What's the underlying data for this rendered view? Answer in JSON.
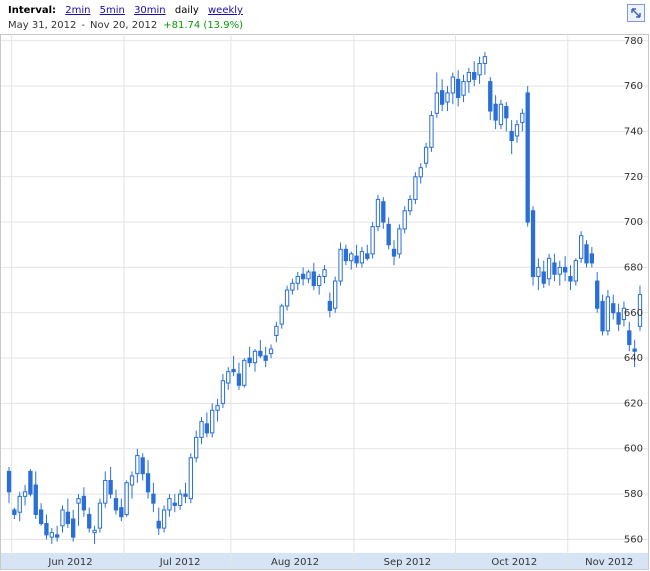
{
  "header": {
    "interval_label": "Interval:",
    "intervals": [
      "2min",
      "5min",
      "30min",
      "daily",
      "weekly"
    ],
    "start_date": "May 31, 2012",
    "separator": "-",
    "end_date": "Nov 20, 2012",
    "change": "+81.74 (13.9%)"
  },
  "chart_data": {
    "type": "candlestick",
    "color": "#2a6fd6",
    "up_fill": "#ffffff",
    "grid": true,
    "xlim": [
      -1.5,
      119.5
    ],
    "xticks": [
      {
        "value": 1,
        "label": "Jun 2012"
      },
      {
        "value": 22,
        "label": "Jul 2012"
      },
      {
        "value": 42,
        "label": "Aug 2012"
      },
      {
        "value": 65,
        "label": "Sep 2012"
      },
      {
        "value": 84,
        "label": "Oct 2012"
      },
      {
        "value": 105,
        "label": "Nov 2012"
      }
    ],
    "ylim": [
      554,
      783
    ],
    "yticks": [
      560,
      580,
      600,
      620,
      640,
      660,
      680,
      700,
      720,
      740,
      760,
      780
    ],
    "open": [
      590,
      573,
      572,
      579,
      590,
      584,
      573,
      567,
      561,
      562,
      566,
      572,
      569,
      576,
      579,
      571,
      563,
      565,
      576,
      586,
      578,
      574,
      571,
      584,
      589,
      596,
      589,
      580,
      568,
      565,
      573,
      576,
      575,
      580,
      578,
      596,
      605,
      611,
      607,
      617,
      620,
      629,
      635,
      633,
      628,
      640,
      638,
      643,
      641,
      642,
      650,
      655,
      663,
      670,
      673,
      677,
      675,
      678,
      672,
      676,
      665,
      662,
      674,
      688,
      683,
      685,
      682,
      686,
      686,
      698,
      709,
      699,
      688,
      686,
      697,
      705,
      710,
      720,
      726,
      733,
      748,
      758,
      753,
      757,
      763,
      756,
      762,
      766,
      765,
      770,
      762,
      752,
      743,
      751,
      740,
      738,
      744,
      757,
      705,
      676,
      678,
      675,
      682,
      677,
      680,
      676,
      674,
      684,
      690,
      686,
      674,
      665,
      652,
      664,
      660,
      657,
      652,
      644,
      654
    ],
    "high": [
      592,
      574,
      581,
      584,
      591,
      590,
      576,
      571,
      565,
      566,
      575,
      578,
      573,
      580,
      583,
      574,
      566,
      578,
      590,
      592,
      582,
      578,
      586,
      590,
      600,
      598,
      595,
      585,
      574,
      575,
      580,
      580,
      582,
      585,
      598,
      608,
      614,
      616,
      620,
      622,
      633,
      636,
      641,
      638,
      640,
      645,
      644,
      648,
      645,
      646,
      656,
      664,
      672,
      675,
      678,
      680,
      679,
      682,
      677,
      681,
      669,
      676,
      691,
      690,
      687,
      690,
      689,
      690,
      700,
      712,
      711,
      702,
      692,
      699,
      707,
      712,
      722,
      726,
      735,
      749,
      766,
      763,
      760,
      766,
      767,
      765,
      768,
      771,
      773,
      775,
      764,
      756,
      754,
      753,
      745,
      745,
      750,
      760,
      707,
      684,
      683,
      686,
      686,
      683,
      685,
      681,
      684,
      696,
      692,
      689,
      678,
      668,
      670,
      668,
      664,
      665,
      656,
      648,
      672
    ],
    "low": [
      576,
      569,
      568,
      575,
      579,
      569,
      566,
      560,
      558,
      559,
      563,
      565,
      559,
      566,
      570,
      563,
      558,
      563,
      574,
      578,
      571,
      568,
      570,
      578,
      585,
      586,
      578,
      572,
      562,
      563,
      570,
      572,
      573,
      576,
      576,
      594,
      602,
      605,
      605,
      612,
      618,
      626,
      632,
      626,
      627,
      636,
      634,
      640,
      636,
      640,
      647,
      653,
      661,
      668,
      670,
      672,
      673,
      670,
      668,
      673,
      658,
      660,
      672,
      681,
      679,
      680,
      680,
      683,
      684,
      696,
      697,
      688,
      681,
      684,
      695,
      703,
      708,
      717,
      724,
      731,
      746,
      749,
      749,
      752,
      751,
      753,
      757,
      760,
      761,
      765,
      745,
      741,
      741,
      740,
      730,
      735,
      740,
      698,
      672,
      670,
      671,
      672,
      674,
      672,
      674,
      670,
      672,
      682,
      680,
      680,
      660,
      650,
      650,
      657,
      652,
      654,
      643,
      636,
      652
    ],
    "close": [
      581,
      571,
      579,
      581,
      580,
      571,
      567,
      562,
      563,
      561,
      573,
      567,
      561,
      578,
      573,
      565,
      564,
      576,
      586,
      580,
      573,
      570,
      585,
      588,
      597,
      589,
      581,
      576,
      565,
      573,
      578,
      575,
      580,
      579,
      596,
      605,
      612,
      607,
      617,
      619,
      630,
      634,
      634,
      628,
      639,
      638,
      643,
      641,
      639,
      644,
      654,
      663,
      670,
      673,
      676,
      675,
      678,
      672,
      676,
      679,
      661,
      674,
      688,
      683,
      686,
      682,
      687,
      684,
      698,
      710,
      700,
      690,
      685,
      697,
      705,
      710,
      720,
      724,
      733,
      747,
      757,
      752,
      757,
      764,
      755,
      762,
      766,
      763,
      770,
      773,
      749,
      745,
      752,
      746,
      736,
      743,
      748,
      700,
      676,
      680,
      673,
      684,
      677,
      680,
      678,
      674,
      683,
      694,
      682,
      682,
      662,
      652,
      667,
      660,
      655,
      662,
      646,
      643,
      668
    ]
  }
}
